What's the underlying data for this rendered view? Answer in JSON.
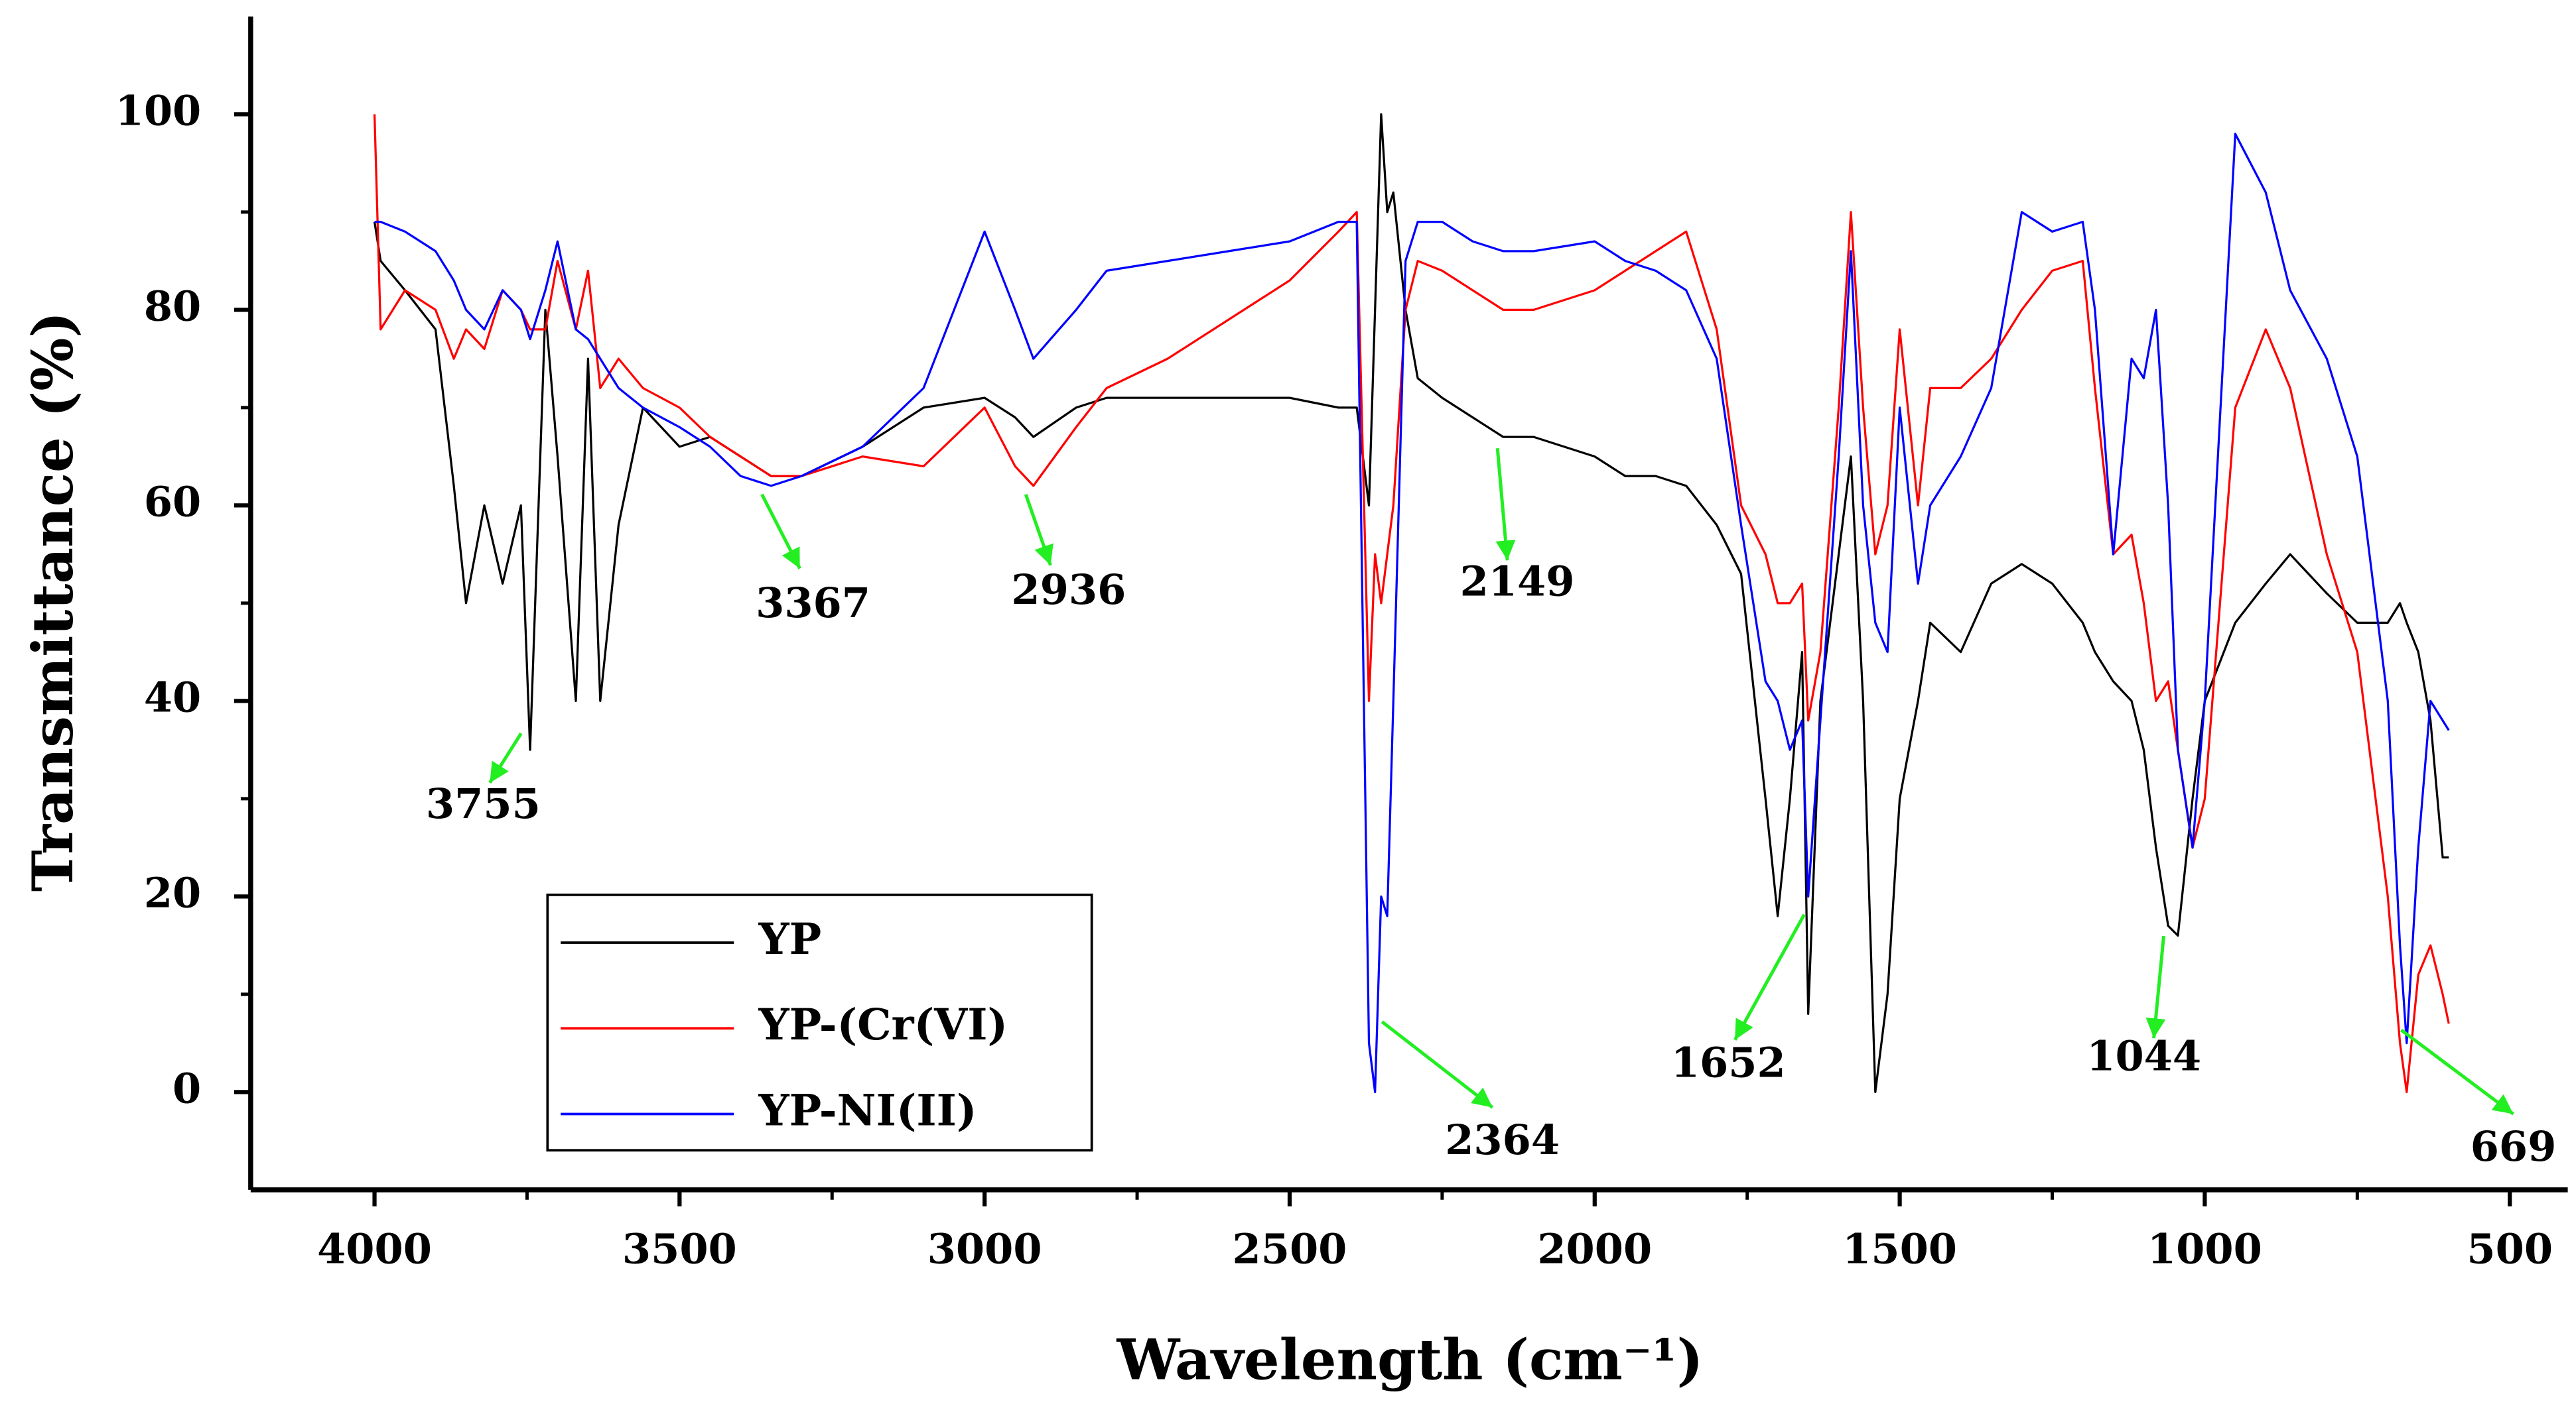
{
  "chart_data": {
    "type": "line",
    "xlabel": "Wavelength (cm⁻¹)",
    "ylabel": "Transmittance (%)",
    "xlim": [
      4203,
      405
    ],
    "ylim": [
      -10,
      110
    ],
    "xticks": [
      4000,
      3500,
      3000,
      2500,
      2000,
      1500,
      1000,
      500
    ],
    "yticks": [
      0,
      20,
      40,
      60,
      80,
      100
    ],
    "legend": "lower left",
    "annotations": [
      "3755",
      "3367",
      "2936",
      "2149",
      "2364",
      "1652",
      "1044",
      "669"
    ],
    "x": [
      4000,
      3990,
      3950,
      3900,
      3870,
      3850,
      3820,
      3790,
      3760,
      3745,
      3720,
      3700,
      3670,
      3650,
      3630,
      3600,
      3560,
      3500,
      3450,
      3400,
      3350,
      3300,
      3200,
      3100,
      3000,
      2950,
      2920,
      2850,
      2800,
      2700,
      2600,
      2500,
      2420,
      2390,
      2370,
      2360,
      2350,
      2340,
      2330,
      2310,
      2290,
      2250,
      2200,
      2150,
      2100,
      2000,
      1950,
      1900,
      1850,
      1800,
      1760,
      1720,
      1700,
      1680,
      1660,
      1650,
      1630,
      1600,
      1580,
      1560,
      1540,
      1520,
      1500,
      1470,
      1450,
      1400,
      1350,
      1300,
      1250,
      1200,
      1180,
      1150,
      1120,
      1100,
      1080,
      1060,
      1044,
      1020,
      1000,
      950,
      900,
      860,
      800,
      750,
      700,
      680,
      669,
      650,
      630,
      610,
      600
    ],
    "series": [
      {
        "name": "YP",
        "color": "#000000",
        "values": [
          89,
          85,
          82,
          78,
          62,
          50,
          60,
          52,
          60,
          35,
          80,
          65,
          40,
          75,
          40,
          58,
          70,
          66,
          67,
          65,
          63,
          63,
          66,
          70,
          71,
          69,
          67,
          70,
          71,
          71,
          71,
          71,
          70,
          70,
          60,
          80,
          100,
          90,
          92,
          80,
          73,
          71,
          69,
          67,
          67,
          65,
          63,
          63,
          62,
          58,
          53,
          30,
          18,
          30,
          45,
          8,
          40,
          55,
          65,
          40,
          0,
          10,
          30,
          40,
          48,
          45,
          52,
          54,
          52,
          48,
          45,
          42,
          40,
          35,
          25,
          17,
          16,
          30,
          40,
          48,
          52,
          55,
          51,
          48,
          48,
          50,
          48,
          45,
          38,
          24,
          24
        ]
      },
      {
        "name": "YP-(Cr(VI)",
        "color": "#ff0000",
        "values": [
          100,
          78,
          82,
          80,
          75,
          78,
          76,
          82,
          80,
          78,
          78,
          85,
          78,
          84,
          72,
          75,
          72,
          70,
          67,
          65,
          63,
          63,
          65,
          64,
          70,
          64,
          62,
          68,
          72,
          75,
          79,
          83,
          88,
          90,
          40,
          55,
          50,
          55,
          60,
          80,
          85,
          84,
          82,
          80,
          80,
          82,
          84,
          86,
          88,
          78,
          60,
          55,
          50,
          50,
          52,
          38,
          45,
          70,
          90,
          70,
          55,
          60,
          78,
          60,
          72,
          72,
          75,
          80,
          84,
          85,
          72,
          55,
          57,
          50,
          40,
          42,
          35,
          25,
          30,
          70,
          78,
          72,
          55,
          45,
          20,
          5,
          0,
          12,
          15,
          10,
          7
        ]
      },
      {
        "name": "YP-NI(II)",
        "color": "#0000ff",
        "values": [
          89,
          89,
          88,
          86,
          83,
          80,
          78,
          82,
          80,
          77,
          82,
          87,
          78,
          77,
          75,
          72,
          70,
          68,
          66,
          63,
          62,
          63,
          66,
          72,
          88,
          80,
          75,
          80,
          84,
          85,
          86,
          87,
          89,
          89,
          5,
          0,
          20,
          18,
          40,
          85,
          89,
          89,
          87,
          86,
          86,
          87,
          85,
          84,
          82,
          75,
          58,
          42,
          40,
          35,
          38,
          20,
          38,
          65,
          86,
          60,
          48,
          45,
          70,
          52,
          60,
          65,
          72,
          90,
          88,
          89,
          80,
          55,
          75,
          73,
          80,
          60,
          35,
          25,
          40,
          98,
          92,
          82,
          75,
          65,
          40,
          15,
          5,
          25,
          40,
          38,
          37
        ]
      }
    ]
  }
}
